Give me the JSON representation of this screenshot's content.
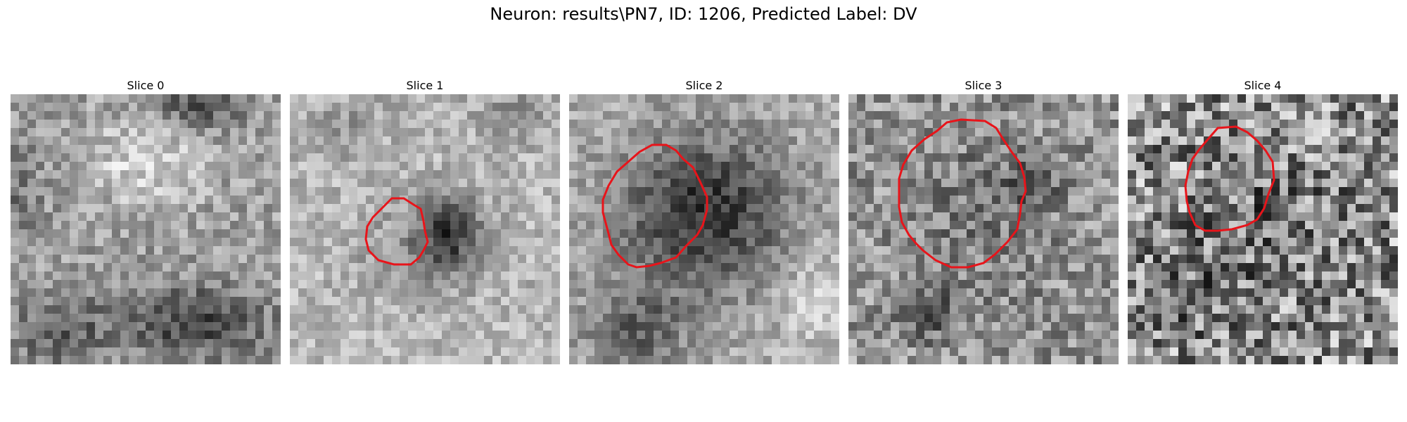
{
  "figure": {
    "title": "Neuron: results\\PN7, ID: 1206, Predicted Label: DV"
  },
  "slices": [
    {
      "label": "Slice 0",
      "has_contour": false,
      "pattern": "texture-bright-center-dark-bottom"
    },
    {
      "label": "Slice 1",
      "has_contour": true,
      "contour_color": "#e8141a",
      "pattern": "bright-with-small-dark-spot"
    },
    {
      "label": "Slice 2",
      "has_contour": true,
      "contour_color": "#e8141a",
      "pattern": "large-dark-blob"
    },
    {
      "label": "Slice 3",
      "has_contour": true,
      "contour_color": "#e8141a",
      "pattern": "noisy-medium-gray"
    },
    {
      "label": "Slice 4",
      "has_contour": true,
      "contour_color": "#e8141a",
      "pattern": "high-noise-checker"
    }
  ]
}
